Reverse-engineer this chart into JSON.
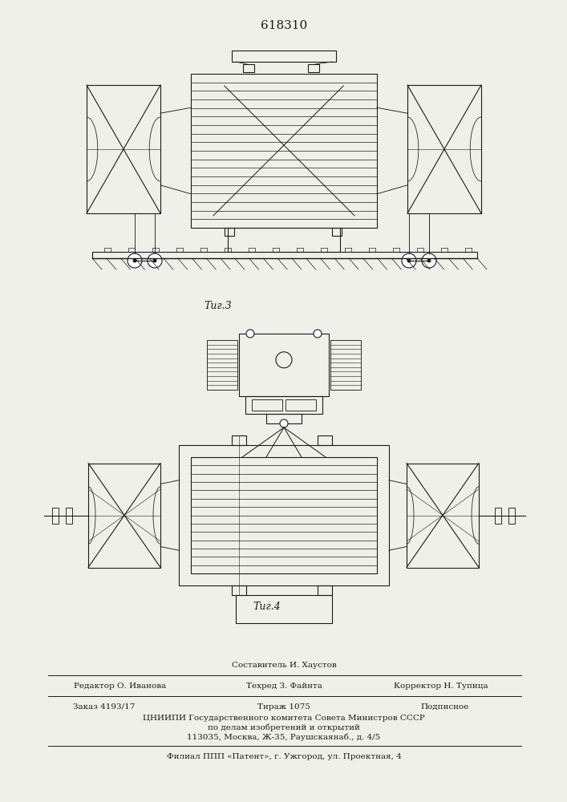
{
  "title": "618310",
  "fig3_label": "Τиг.3",
  "fig4_label": "Τиг.4",
  "footer_composer": "Составитель И. Хаустов",
  "footer_editor": "Редактор О. Иванова",
  "footer_tech": "Техред З. Файнта",
  "footer_corr": "Корректор Н. Тупица",
  "footer_zakaz": "Заказ 4193/17",
  "footer_tirazh": "Тираж 1075",
  "footer_podp": "Подписное",
  "footer_cnipi": "ЦНИИПИ Государственного комитета Совета Министров СССР",
  "footer_po": "по делам изобретений и открытий",
  "footer_addr": "113035, Москва, Ж-35, Раушскаянаб., д. 4/5",
  "footer_filial": "Филиал ППП «Патент», г. Ужгород, ул. Проектная, 4",
  "bg_color": "#f0f0eb",
  "line_color": "#1a1a1a"
}
